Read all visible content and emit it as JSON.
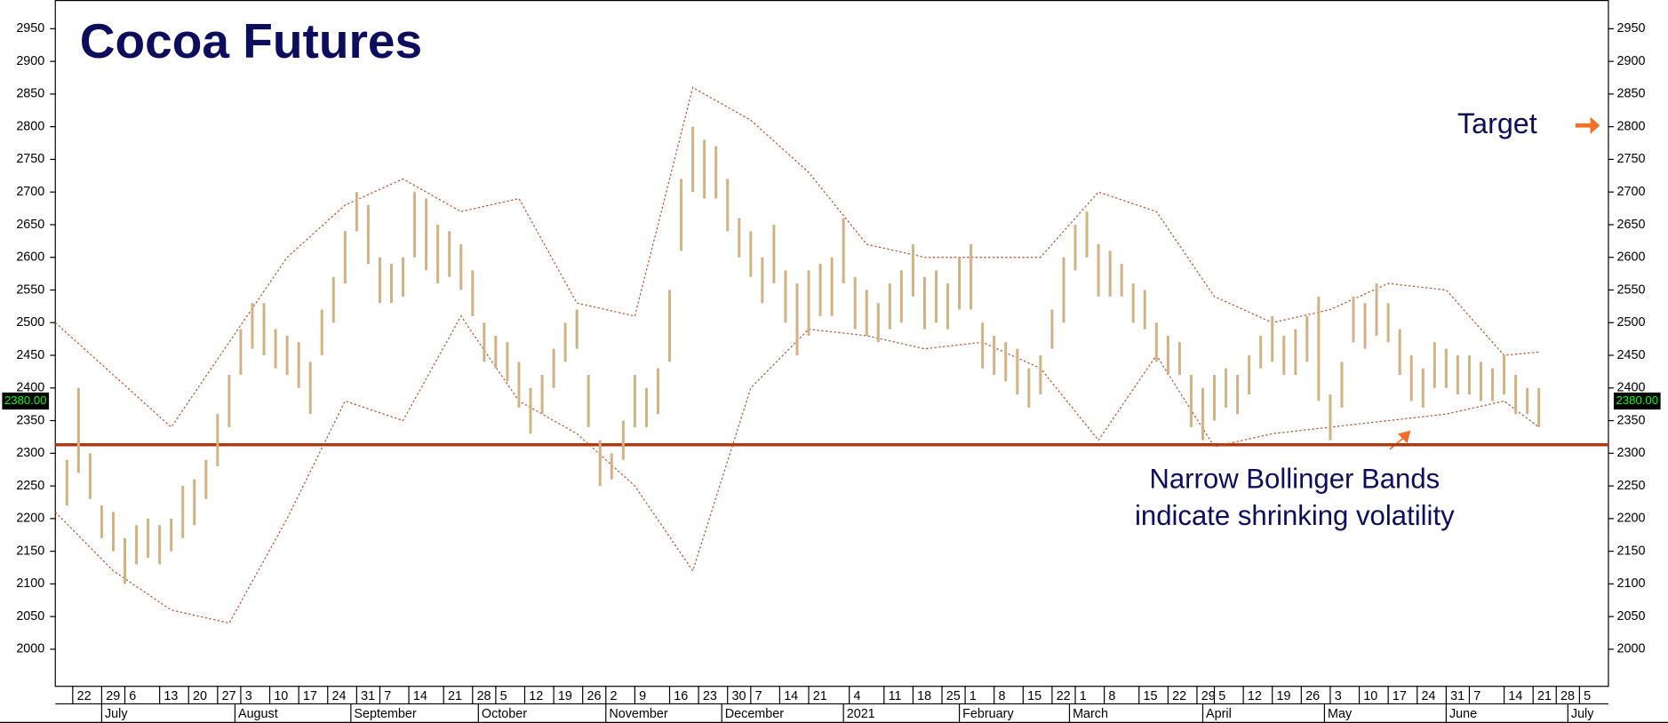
{
  "chart_data": {
    "type": "range-bar",
    "title": "Cocoa Futures",
    "annotations": [
      "Target",
      "Narrow Bollinger Bands",
      "indicate shrinking volatility"
    ],
    "xlim": [
      0,
      268
    ],
    "ylim": [
      1944,
      2994
    ],
    "yticks": [
      2000,
      2050,
      2100,
      2150,
      2200,
      2250,
      2300,
      2350,
      2400,
      2450,
      2500,
      2550,
      2600,
      2650,
      2700,
      2750,
      2800,
      2850,
      2900,
      2950
    ],
    "xticks": [
      {
        "value": 3,
        "label": "22"
      },
      {
        "value": 8,
        "label": "29"
      },
      {
        "value": 12,
        "label": "6"
      },
      {
        "value": 18,
        "label": "13"
      },
      {
        "value": 23,
        "label": "20"
      },
      {
        "value": 28,
        "label": "27"
      },
      {
        "value": 32,
        "label": "3"
      },
      {
        "value": 37,
        "label": "10"
      },
      {
        "value": 42,
        "label": "17"
      },
      {
        "value": 47,
        "label": "24"
      },
      {
        "value": 52,
        "label": "31"
      },
      {
        "value": 56,
        "label": "7"
      },
      {
        "value": 61,
        "label": "14"
      },
      {
        "value": 67,
        "label": "21"
      },
      {
        "value": 72,
        "label": "28"
      },
      {
        "value": 76,
        "label": "5"
      },
      {
        "value": 81,
        "label": "12"
      },
      {
        "value": 86,
        "label": "19"
      },
      {
        "value": 91,
        "label": "26"
      },
      {
        "value": 95,
        "label": "2"
      },
      {
        "value": 100,
        "label": "9"
      },
      {
        "value": 106,
        "label": "16"
      },
      {
        "value": 111,
        "label": "23"
      },
      {
        "value": 116,
        "label": "30"
      },
      {
        "value": 120,
        "label": "7"
      },
      {
        "value": 125,
        "label": "14"
      },
      {
        "value": 130,
        "label": "21"
      },
      {
        "value": 137,
        "label": "4"
      },
      {
        "value": 143,
        "label": "11"
      },
      {
        "value": 148,
        "label": "18"
      },
      {
        "value": 153,
        "label": "25"
      },
      {
        "value": 157,
        "label": "1"
      },
      {
        "value": 162,
        "label": "8"
      },
      {
        "value": 167,
        "label": "15"
      },
      {
        "value": 172,
        "label": "22"
      },
      {
        "value": 176,
        "label": "1"
      },
      {
        "value": 181,
        "label": "8"
      },
      {
        "value": 187,
        "label": "15"
      },
      {
        "value": 192,
        "label": "22"
      },
      {
        "value": 197,
        "label": "29"
      },
      {
        "value": 200,
        "label": "5"
      },
      {
        "value": 205,
        "label": "12"
      },
      {
        "value": 210,
        "label": "19"
      },
      {
        "value": 215,
        "label": "26"
      },
      {
        "value": 220,
        "label": "3"
      },
      {
        "value": 225,
        "label": "10"
      },
      {
        "value": 230,
        "label": "17"
      },
      {
        "value": 235,
        "label": "24"
      },
      {
        "value": 240,
        "label": "31"
      },
      {
        "value": 244,
        "label": "7"
      },
      {
        "value": 250,
        "label": "14"
      },
      {
        "value": 255,
        "label": "21"
      },
      {
        "value": 259,
        "label": "28"
      },
      {
        "value": 263,
        "label": "5"
      }
    ],
    "months": [
      {
        "value": 8,
        "label": "July"
      },
      {
        "value": 31,
        "label": "August"
      },
      {
        "value": 51,
        "label": "September"
      },
      {
        "value": 73,
        "label": "October"
      },
      {
        "value": 95,
        "label": "November"
      },
      {
        "value": 115,
        "label": "December"
      },
      {
        "value": 136,
        "label": "2021"
      },
      {
        "value": 156,
        "label": "February"
      },
      {
        "value": 175,
        "label": "March"
      },
      {
        "value": 198,
        "label": "April"
      },
      {
        "value": 219,
        "label": "May"
      },
      {
        "value": 240,
        "label": "June"
      },
      {
        "value": 261,
        "label": "July"
      }
    ],
    "last_price": {
      "value": 2380,
      "label": "2380.00"
    },
    "support_level": 2313,
    "support_color": "#b03a10",
    "bars": {
      "color": "#d2b184",
      "x": [
        2,
        4,
        6,
        8,
        10,
        12,
        14,
        16,
        18,
        20,
        22,
        24,
        26,
        28,
        30,
        32,
        34,
        36,
        38,
        40,
        42,
        44,
        46,
        48,
        50,
        52,
        54,
        56,
        58,
        60,
        62,
        64,
        66,
        68,
        70,
        72,
        74,
        76,
        78,
        80,
        82,
        84,
        86,
        88,
        90,
        92,
        94,
        96,
        98,
        100,
        102,
        104,
        106,
        108,
        110,
        112,
        114,
        116,
        118,
        120,
        122,
        124,
        126,
        128,
        130,
        132,
        134,
        136,
        138,
        140,
        142,
        144,
        146,
        148,
        150,
        152,
        154,
        156,
        158,
        160,
        162,
        164,
        166,
        168,
        170,
        172,
        174,
        176,
        178,
        180,
        182,
        184,
        186,
        188,
        190,
        192,
        194,
        196,
        198,
        200,
        202,
        204,
        206,
        208,
        210,
        212,
        214,
        216,
        218,
        220,
        222,
        224,
        226,
        228,
        230,
        232,
        234,
        236,
        238,
        240,
        242,
        244,
        246,
        248,
        250,
        252,
        254,
        256
      ],
      "high": [
        2290,
        2400,
        2300,
        2220,
        2210,
        2170,
        2190,
        2200,
        2190,
        2200,
        2250,
        2260,
        2290,
        2360,
        2420,
        2490,
        2530,
        2530,
        2490,
        2480,
        2470,
        2440,
        2520,
        2570,
        2640,
        2700,
        2680,
        2600,
        2590,
        2600,
        2700,
        2690,
        2650,
        2640,
        2620,
        2580,
        2500,
        2480,
        2470,
        2440,
        2400,
        2420,
        2460,
        2500,
        2520,
        2420,
        2320,
        2300,
        2350,
        2420,
        2400,
        2430,
        2550,
        2720,
        2800,
        2780,
        2770,
        2720,
        2660,
        2640,
        2600,
        2650,
        2580,
        2560,
        2580,
        2590,
        2600,
        2660,
        2570,
        2550,
        2530,
        2560,
        2580,
        2620,
        2570,
        2580,
        2560,
        2600,
        2620,
        2500,
        2480,
        2470,
        2460,
        2430,
        2450,
        2520,
        2600,
        2650,
        2670,
        2620,
        2610,
        2590,
        2560,
        2550,
        2500,
        2480,
        2470,
        2420,
        2400,
        2420,
        2430,
        2420,
        2450,
        2480,
        2510,
        2480,
        2490,
        2510,
        2540,
        2390,
        2440,
        2540,
        2530,
        2560,
        2530,
        2490,
        2450,
        2430,
        2470,
        2460,
        2450,
        2450,
        2440,
        2430,
        2450,
        2420,
        2400,
        2400
      ],
      "low": [
        2220,
        2270,
        2230,
        2170,
        2150,
        2100,
        2130,
        2140,
        2130,
        2150,
        2170,
        2190,
        2230,
        2280,
        2340,
        2420,
        2460,
        2450,
        2430,
        2420,
        2400,
        2360,
        2450,
        2500,
        2560,
        2640,
        2590,
        2530,
        2530,
        2540,
        2600,
        2580,
        2560,
        2570,
        2550,
        2510,
        2440,
        2430,
        2410,
        2370,
        2330,
        2360,
        2400,
        2440,
        2460,
        2340,
        2250,
        2260,
        2290,
        2340,
        2340,
        2360,
        2440,
        2610,
        2700,
        2690,
        2690,
        2640,
        2600,
        2570,
        2530,
        2560,
        2500,
        2450,
        2480,
        2510,
        2510,
        2560,
        2490,
        2480,
        2470,
        2490,
        2500,
        2540,
        2490,
        2500,
        2490,
        2520,
        2520,
        2430,
        2420,
        2410,
        2390,
        2370,
        2390,
        2460,
        2500,
        2580,
        2600,
        2540,
        2540,
        2540,
        2500,
        2490,
        2440,
        2420,
        2420,
        2340,
        2320,
        2350,
        2370,
        2360,
        2390,
        2430,
        2440,
        2420,
        2420,
        2440,
        2380,
        2320,
        2370,
        2470,
        2460,
        2480,
        2470,
        2420,
        2380,
        2370,
        2400,
        2400,
        2390,
        2390,
        2380,
        2380,
        2390,
        2360,
        2360,
        2340
      ]
    },
    "bands": {
      "color": "#c0502a",
      "x": [
        0,
        10,
        20,
        30,
        40,
        50,
        60,
        70,
        80,
        90,
        100,
        110,
        120,
        130,
        140,
        150,
        160,
        170,
        180,
        190,
        200,
        210,
        220,
        230,
        240,
        250,
        256
      ],
      "upper": [
        2500,
        2420,
        2340,
        2470,
        2600,
        2680,
        2720,
        2670,
        2690,
        2530,
        2510,
        2860,
        2810,
        2730,
        2620,
        2600,
        2600,
        2600,
        2700,
        2670,
        2540,
        2500,
        2520,
        2560,
        2550,
        2450,
        2455
      ],
      "lower": [
        2210,
        2120,
        2060,
        2040,
        2200,
        2380,
        2350,
        2510,
        2380,
        2330,
        2250,
        2120,
        2400,
        2490,
        2480,
        2460,
        2470,
        2430,
        2320,
        2450,
        2310,
        2330,
        2340,
        2350,
        2360,
        2380,
        2340
      ]
    }
  }
}
